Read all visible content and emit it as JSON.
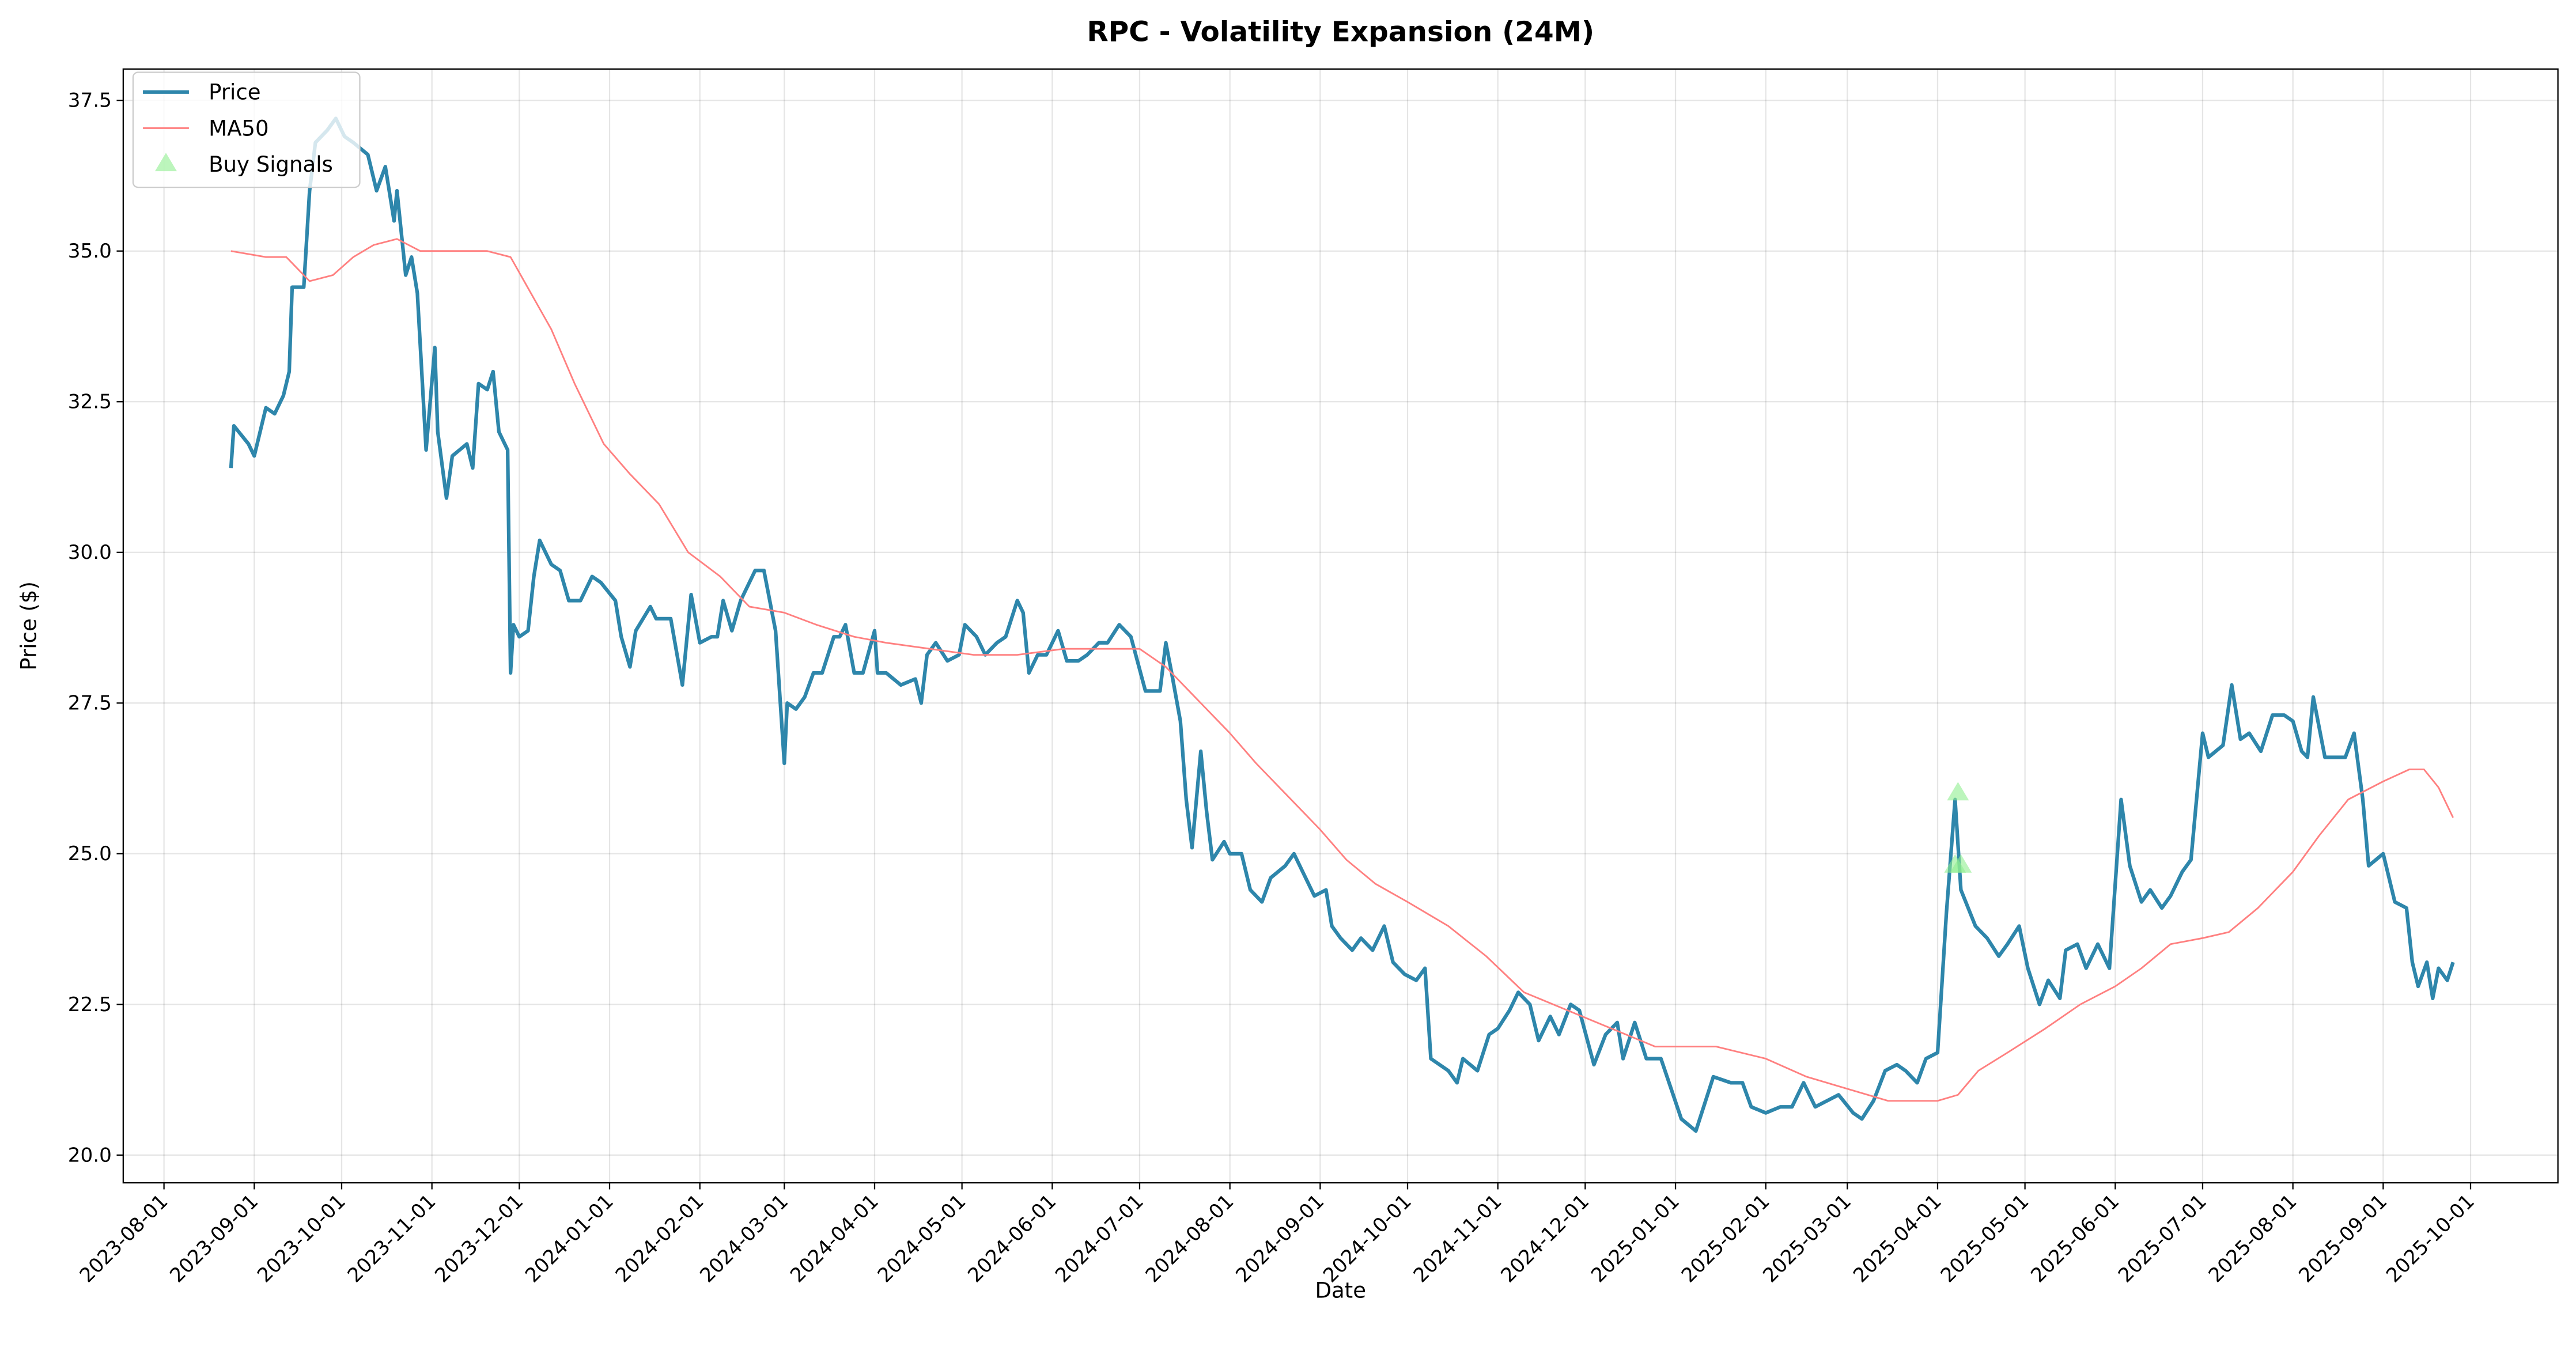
{
  "chart_data": {
    "type": "line",
    "title": "RPC - Volatility Expansion (24M)",
    "x_label": "Date",
    "y_label": "Price ($)",
    "xlim": [
      "2023-07-18",
      "2025-10-31"
    ],
    "xticks": [
      "2023-08-01",
      "2023-09-01",
      "2023-10-01",
      "2023-11-01",
      "2023-12-01",
      "2024-01-01",
      "2024-02-01",
      "2024-03-01",
      "2024-04-01",
      "2024-05-01",
      "2024-06-01",
      "2024-07-01",
      "2024-08-01",
      "2024-09-01",
      "2024-10-01",
      "2024-11-01",
      "2024-12-01",
      "2025-01-01",
      "2025-02-01",
      "2025-03-01",
      "2025-04-01",
      "2025-05-01",
      "2025-06-01",
      "2025-07-01",
      "2025-08-01",
      "2025-09-01",
      "2025-10-01"
    ],
    "ylim": [
      19.54,
      38.02
    ],
    "yticks": [
      {
        "value": 20,
        "label": "20.0"
      },
      {
        "value": 22.5,
        "label": "22.5"
      },
      {
        "value": 25,
        "label": "25.0"
      },
      {
        "value": 27.5,
        "label": "27.5"
      },
      {
        "value": 30,
        "label": "30.0"
      },
      {
        "value": 32.5,
        "label": "32.5"
      },
      {
        "value": 35,
        "label": "35.0"
      },
      {
        "value": 37.5,
        "label": "37.5"
      }
    ],
    "grid": true,
    "legend": "upper left",
    "series": [
      {
        "name": "Price",
        "style": "line",
        "color": "#2e86ab",
        "x": [
          "2023-08-24",
          "2023-08-25",
          "2023-08-30",
          "2023-09-01",
          "2023-09-05",
          "2023-09-08",
          "2023-09-11",
          "2023-09-13",
          "2023-09-14",
          "2023-09-18",
          "2023-09-20",
          "2023-09-22",
          "2023-09-26",
          "2023-09-29",
          "2023-10-02",
          "2023-10-05",
          "2023-10-10",
          "2023-10-13",
          "2023-10-16",
          "2023-10-19",
          "2023-10-20",
          "2023-10-23",
          "2023-10-25",
          "2023-10-27",
          "2023-10-30",
          "2023-11-02",
          "2023-11-03",
          "2023-11-06",
          "2023-11-08",
          "2023-11-13",
          "2023-11-15",
          "2023-11-17",
          "2023-11-20",
          "2023-11-22",
          "2023-11-24",
          "2023-11-27",
          "2023-11-28",
          "2023-11-29",
          "2023-12-01",
          "2023-12-04",
          "2023-12-06",
          "2023-12-08",
          "2023-12-12",
          "2023-12-15",
          "2023-12-18",
          "2023-12-22",
          "2023-12-26",
          "2023-12-29",
          "2024-01-03",
          "2024-01-05",
          "2024-01-08",
          "2024-01-10",
          "2024-01-15",
          "2024-01-17",
          "2024-01-22",
          "2024-01-26",
          "2024-01-29",
          "2024-02-01",
          "2024-02-05",
          "2024-02-07",
          "2024-02-09",
          "2024-02-12",
          "2024-02-15",
          "2024-02-20",
          "2024-02-23",
          "2024-02-27",
          "2024-03-01",
          "2024-03-02",
          "2024-03-05",
          "2024-03-08",
          "2024-03-11",
          "2024-03-14",
          "2024-03-18",
          "2024-03-20",
          "2024-03-22",
          "2024-03-25",
          "2024-03-28",
          "2024-04-01",
          "2024-04-02",
          "2024-04-05",
          "2024-04-10",
          "2024-04-15",
          "2024-04-17",
          "2024-04-19",
          "2024-04-22",
          "2024-04-26",
          "2024-04-30",
          "2024-05-02",
          "2024-05-06",
          "2024-05-09",
          "2024-05-13",
          "2024-05-16",
          "2024-05-20",
          "2024-05-22",
          "2024-05-24",
          "2024-05-27",
          "2024-05-30",
          "2024-06-03",
          "2024-06-06",
          "2024-06-10",
          "2024-06-13",
          "2024-06-17",
          "2024-06-20",
          "2024-06-24",
          "2024-06-28",
          "2024-07-03",
          "2024-07-08",
          "2024-07-10",
          "2024-07-12",
          "2024-07-15",
          "2024-07-17",
          "2024-07-19",
          "2024-07-22",
          "2024-07-24",
          "2024-07-26",
          "2024-07-30",
          "2024-08-01",
          "2024-08-05",
          "2024-08-08",
          "2024-08-12",
          "2024-08-15",
          "2024-08-20",
          "2024-08-23",
          "2024-08-27",
          "2024-08-30",
          "2024-09-03",
          "2024-09-05",
          "2024-09-08",
          "2024-09-12",
          "2024-09-15",
          "2024-09-19",
          "2024-09-23",
          "2024-09-26",
          "2024-09-30",
          "2024-10-04",
          "2024-10-07",
          "2024-10-09",
          "2024-10-15",
          "2024-10-18",
          "2024-10-20",
          "2024-10-25",
          "2024-10-29",
          "2024-11-01",
          "2024-11-05",
          "2024-11-08",
          "2024-11-12",
          "2024-11-15",
          "2024-11-19",
          "2024-11-22",
          "2024-11-26",
          "2024-11-29",
          "2024-12-04",
          "2024-12-08",
          "2024-12-12",
          "2024-12-14",
          "2024-12-18",
          "2024-12-22",
          "2024-12-27",
          "2025-01-03",
          "2025-01-08",
          "2025-01-14",
          "2025-01-20",
          "2025-01-24",
          "2025-01-27",
          "2025-02-01",
          "2025-02-06",
          "2025-02-10",
          "2025-02-14",
          "2025-02-18",
          "2025-02-22",
          "2025-02-26",
          "2025-03-03",
          "2025-03-06",
          "2025-03-10",
          "2025-03-14",
          "2025-03-18",
          "2025-03-21",
          "2025-03-25",
          "2025-03-28",
          "2025-04-01",
          "2025-04-04",
          "2025-04-07",
          "2025-04-09",
          "2025-04-14",
          "2025-04-18",
          "2025-04-22",
          "2025-04-25",
          "2025-04-29",
          "2025-05-02",
          "2025-05-06",
          "2025-05-09",
          "2025-05-13",
          "2025-05-15",
          "2025-05-19",
          "2025-05-22",
          "2025-05-26",
          "2025-05-30",
          "2025-06-03",
          "2025-06-06",
          "2025-06-10",
          "2025-06-13",
          "2025-06-17",
          "2025-06-20",
          "2025-06-24",
          "2025-06-27",
          "2025-07-01",
          "2025-07-03",
          "2025-07-08",
          "2025-07-11",
          "2025-07-14",
          "2025-07-17",
          "2025-07-21",
          "2025-07-25",
          "2025-07-29",
          "2025-08-01",
          "2025-08-04",
          "2025-08-06",
          "2025-08-08",
          "2025-08-12",
          "2025-08-15",
          "2025-08-19",
          "2025-08-22",
          "2025-08-25",
          "2025-08-27",
          "2025-09-01",
          "2025-09-05",
          "2025-09-09",
          "2025-09-11",
          "2025-09-13",
          "2025-09-16",
          "2025-09-18",
          "2025-09-20",
          "2025-09-23",
          "2025-09-25"
        ],
        "values": [
          31.4,
          32.1,
          31.8,
          31.6,
          32.4,
          32.3,
          32.6,
          33.0,
          34.4,
          34.4,
          36.0,
          36.8,
          37.0,
          37.2,
          36.9,
          36.8,
          36.6,
          36.0,
          36.4,
          35.5,
          36.0,
          34.6,
          34.9,
          34.3,
          31.7,
          33.4,
          32.0,
          30.9,
          31.6,
          31.8,
          31.4,
          32.8,
          32.7,
          33.0,
          32.0,
          31.7,
          28.0,
          28.8,
          28.6,
          28.7,
          29.6,
          30.2,
          29.8,
          29.7,
          29.2,
          29.2,
          29.6,
          29.5,
          29.2,
          28.6,
          28.1,
          28.7,
          29.1,
          28.9,
          28.9,
          27.8,
          29.3,
          28.5,
          28.6,
          28.6,
          29.2,
          28.7,
          29.2,
          29.7,
          29.7,
          28.7,
          26.5,
          27.5,
          27.4,
          27.6,
          28.0,
          28.0,
          28.6,
          28.6,
          28.8,
          28.0,
          28.0,
          28.7,
          28.0,
          28.0,
          27.8,
          27.9,
          27.5,
          28.3,
          28.5,
          28.2,
          28.3,
          28.8,
          28.6,
          28.3,
          28.5,
          28.6,
          29.2,
          29.0,
          28.0,
          28.3,
          28.3,
          28.7,
          28.2,
          28.2,
          28.3,
          28.5,
          28.5,
          28.8,
          28.6,
          27.7,
          27.7,
          28.5,
          28.0,
          27.2,
          25.9,
          25.1,
          26.7,
          25.7,
          24.9,
          25.2,
          25.0,
          25.0,
          24.4,
          24.2,
          24.6,
          24.8,
          25.0,
          24.6,
          24.3,
          24.4,
          23.8,
          23.6,
          23.4,
          23.6,
          23.4,
          23.8,
          23.2,
          23.0,
          22.9,
          23.1,
          21.6,
          21.4,
          21.2,
          21.6,
          21.4,
          22.0,
          22.1,
          22.4,
          22.7,
          22.5,
          21.9,
          22.3,
          22.0,
          22.5,
          22.4,
          21.5,
          22.0,
          22.2,
          21.6,
          22.2,
          21.6,
          21.6,
          20.6,
          20.4,
          21.3,
          21.2,
          21.2,
          20.8,
          20.7,
          20.8,
          20.8,
          21.2,
          20.8,
          20.9,
          21.0,
          20.7,
          20.6,
          20.9,
          21.4,
          21.5,
          21.4,
          21.2,
          21.6,
          21.7,
          24.0,
          25.9,
          24.4,
          23.8,
          23.6,
          23.3,
          23.5,
          23.8,
          23.1,
          22.5,
          22.9,
          22.6,
          23.4,
          23.5,
          23.1,
          23.5,
          23.1,
          25.9,
          24.8,
          24.2,
          24.4,
          24.1,
          24.3,
          24.7,
          24.9,
          27.0,
          26.6,
          26.8,
          27.8,
          26.9,
          27.0,
          26.7,
          27.3,
          27.3,
          27.2,
          26.7,
          26.6,
          27.6,
          26.6,
          26.6,
          26.6,
          27.0,
          25.9,
          24.8,
          25.0,
          24.2,
          24.1,
          23.2,
          22.8,
          23.2,
          22.6,
          23.1,
          22.9,
          23.2
        ]
      },
      {
        "name": "MA50",
        "style": "line",
        "color": "#ff8080",
        "x": [
          "2023-08-24",
          "2023-09-05",
          "2023-09-12",
          "2023-09-20",
          "2023-09-28",
          "2023-10-05",
          "2023-10-12",
          "2023-10-20",
          "2023-10-28",
          "2023-11-10",
          "2023-11-20",
          "2023-11-28",
          "2023-12-05",
          "2023-12-12",
          "2023-12-20",
          "2023-12-30",
          "2024-01-08",
          "2024-01-18",
          "2024-01-28",
          "2024-02-08",
          "2024-02-18",
          "2024-03-01",
          "2024-03-12",
          "2024-03-25",
          "2024-04-05",
          "2024-04-20",
          "2024-05-05",
          "2024-05-20",
          "2024-06-05",
          "2024-06-20",
          "2024-07-01",
          "2024-07-10",
          "2024-07-20",
          "2024-08-01",
          "2024-08-10",
          "2024-08-20",
          "2024-09-01",
          "2024-09-10",
          "2024-09-20",
          "2024-10-01",
          "2024-10-15",
          "2024-10-28",
          "2024-11-10",
          "2024-11-25",
          "2024-12-10",
          "2024-12-25",
          "2025-01-15",
          "2025-02-01",
          "2025-02-15",
          "2025-03-01",
          "2025-03-15",
          "2025-04-01",
          "2025-04-08",
          "2025-04-15",
          "2025-04-25",
          "2025-05-08",
          "2025-05-20",
          "2025-06-01",
          "2025-06-10",
          "2025-06-20",
          "2025-07-01",
          "2025-07-10",
          "2025-07-20",
          "2025-08-01",
          "2025-08-10",
          "2025-08-20",
          "2025-09-01",
          "2025-09-10",
          "2025-09-15",
          "2025-09-20",
          "2025-09-25"
        ],
        "values": [
          35.0,
          34.9,
          34.9,
          34.5,
          34.6,
          34.9,
          35.1,
          35.2,
          35.0,
          35.0,
          35.0,
          34.9,
          34.3,
          33.7,
          32.8,
          31.8,
          31.3,
          30.8,
          30.0,
          29.6,
          29.1,
          29.0,
          28.8,
          28.6,
          28.5,
          28.4,
          28.3,
          28.3,
          28.4,
          28.4,
          28.4,
          28.1,
          27.6,
          27.0,
          26.5,
          26.0,
          25.4,
          24.9,
          24.5,
          24.2,
          23.8,
          23.3,
          22.7,
          22.4,
          22.1,
          21.8,
          21.8,
          21.6,
          21.3,
          21.1,
          20.9,
          20.9,
          21.0,
          21.4,
          21.7,
          22.1,
          22.5,
          22.8,
          23.1,
          23.5,
          23.6,
          23.7,
          24.1,
          24.7,
          25.3,
          25.9,
          26.2,
          26.4,
          26.4,
          26.1,
          25.6
        ]
      },
      {
        "name": "Buy Signals",
        "style": "marker",
        "color": "#90ee90",
        "x": [
          "2025-04-07",
          "2025-04-08",
          "2025-04-09"
        ],
        "values": [
          24.8,
          26.0,
          24.8
        ]
      }
    ]
  }
}
